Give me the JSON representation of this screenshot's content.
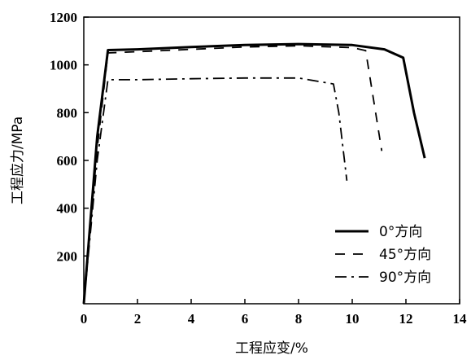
{
  "chart_data": {
    "type": "line",
    "xlabel": "工程应变/%",
    "ylabel": "工程应力/MPa",
    "xlim": [
      0,
      14
    ],
    "ylim": [
      0,
      1200
    ],
    "xticks": [
      0,
      2,
      4,
      6,
      8,
      10,
      12,
      14
    ],
    "yticks": [
      200,
      400,
      600,
      800,
      1000,
      1200
    ],
    "xtick_labels": [
      "0",
      "2",
      "4",
      "6",
      "8",
      "10",
      "12",
      "14"
    ],
    "ytick_labels": [
      "200",
      "400",
      "600",
      "800",
      "1000",
      "1200"
    ],
    "grid": false,
    "legend_position": "bottom-right",
    "series": [
      {
        "name": "0°方向",
        "line_style": "solid",
        "color": "#000000",
        "x": [
          0,
          0.5,
          0.9,
          2,
          4,
          6,
          8,
          10,
          11.2,
          11.9,
          12.3,
          12.7
        ],
        "y": [
          0,
          700,
          1062,
          1065,
          1075,
          1083,
          1087,
          1083,
          1065,
          1030,
          800,
          610
        ]
      },
      {
        "name": "45°方向",
        "line_style": "dashed",
        "color": "#000000",
        "x": [
          0,
          0.5,
          0.9,
          2,
          4,
          6,
          8,
          10,
          10.5,
          10.8,
          11.1
        ],
        "y": [
          0,
          650,
          1050,
          1055,
          1065,
          1075,
          1080,
          1072,
          1060,
          850,
          640
        ]
      },
      {
        "name": "90°方向",
        "line_style": "dash-dot",
        "color": "#000000",
        "x": [
          0,
          0.5,
          0.9,
          2,
          4,
          6,
          8,
          9.3,
          9.5,
          9.8
        ],
        "y": [
          0,
          600,
          938,
          938,
          942,
          945,
          945,
          920,
          800,
          515
        ]
      }
    ]
  }
}
